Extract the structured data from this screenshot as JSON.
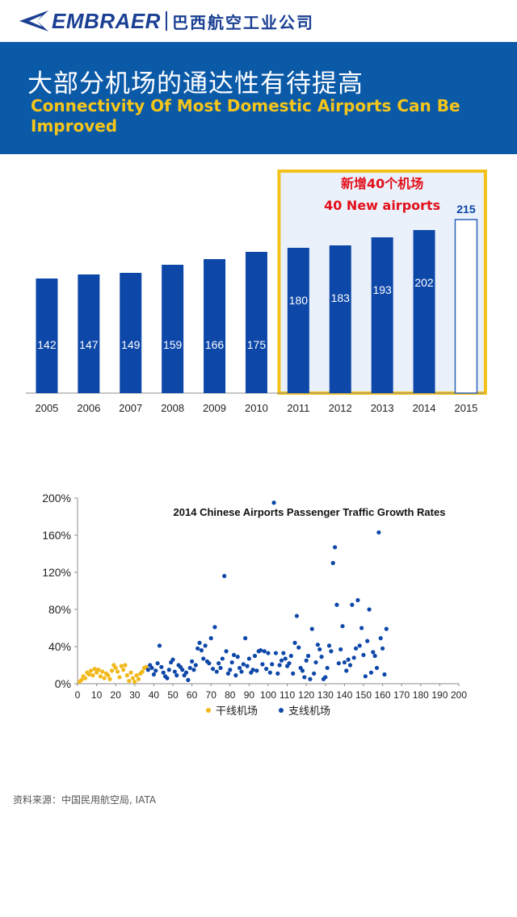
{
  "header": {
    "logo_text": "EMBRAER",
    "logo_cn": "巴西航空工业公司",
    "brand_color": "#1a3f93"
  },
  "banner": {
    "title_cn": "大部分机场的通达性有待提高",
    "title_en": "Connectivity Of Most Domestic Airports Can Be Improved",
    "bg_color": "#0b5aa8",
    "title_en_color": "#f5c51a"
  },
  "chart_data": [
    {
      "type": "bar",
      "categories": [
        "2005",
        "2006",
        "2007",
        "2008",
        "2009",
        "2010",
        "2011",
        "2012",
        "2013",
        "2014",
        "2015"
      ],
      "values": [
        142,
        147,
        149,
        159,
        166,
        175,
        180,
        183,
        193,
        202,
        215
      ],
      "ylim": [
        0,
        300
      ],
      "bar_color": "#0d47a8",
      "projected_category": "2015",
      "highlight": {
        "from": "2011",
        "to": "2015",
        "label_cn": "新增40个机场",
        "label_en": "40 New airports",
        "border_color": "#f2c21b",
        "label_color": "#e3101b"
      }
    },
    {
      "type": "scatter",
      "title": "2014 Chinese Airports Passenger Traffic Growth Rates",
      "xlim": [
        0,
        200
      ],
      "ylim": [
        0,
        200
      ],
      "x_ticks": [
        0,
        10,
        20,
        30,
        40,
        50,
        60,
        70,
        80,
        90,
        100,
        110,
        120,
        130,
        140,
        150,
        160,
        170,
        180,
        190,
        200
      ],
      "y_ticks": [
        "0%",
        "40%",
        "80%",
        "120%",
        "160%",
        "200%"
      ],
      "y_tick_values": [
        0,
        40,
        80,
        120,
        160,
        200
      ],
      "series": [
        {
          "name": "干线机场",
          "color": "#f2b81a",
          "points": [
            [
              1,
              2
            ],
            [
              2,
              4
            ],
            [
              3,
              8
            ],
            [
              4,
              6
            ],
            [
              5,
              12
            ],
            [
              6,
              10
            ],
            [
              7,
              14
            ],
            [
              8,
              9
            ],
            [
              9,
              16
            ],
            [
              10,
              12
            ],
            [
              11,
              15
            ],
            [
              12,
              8
            ],
            [
              13,
              13
            ],
            [
              14,
              6
            ],
            [
              15,
              11
            ],
            [
              16,
              9
            ],
            [
              17,
              5
            ],
            [
              18,
              14
            ],
            [
              19,
              20
            ],
            [
              20,
              17
            ],
            [
              21,
              13
            ],
            [
              22,
              7
            ],
            [
              23,
              19
            ],
            [
              24,
              15
            ],
            [
              25,
              20
            ],
            [
              26,
              9
            ],
            [
              27,
              3
            ],
            [
              28,
              12
            ],
            [
              29,
              6
            ],
            [
              30,
              2
            ],
            [
              31,
              9
            ],
            [
              32,
              5
            ],
            [
              33,
              11
            ],
            [
              34,
              13
            ],
            [
              35,
              17
            ],
            [
              36,
              18
            ]
          ]
        },
        {
          "name": "支线机场",
          "color": "#0d47a8",
          "points": [
            [
              37,
              15
            ],
            [
              38,
              20
            ],
            [
              39,
              17
            ],
            [
              40,
              10
            ],
            [
              41,
              14
            ],
            [
              42,
              22
            ],
            [
              43,
              41
            ],
            [
              44,
              18
            ],
            [
              45,
              12
            ],
            [
              46,
              8
            ],
            [
              47,
              6
            ],
            [
              48,
              15
            ],
            [
              49,
              23
            ],
            [
              50,
              26
            ],
            [
              51,
              13
            ],
            [
              52,
              9
            ],
            [
              53,
              20
            ],
            [
              54,
              18
            ],
            [
              55,
              15
            ],
            [
              56,
              9
            ],
            [
              57,
              12
            ],
            [
              58,
              4
            ],
            [
              59,
              17
            ],
            [
              60,
              24
            ],
            [
              61,
              15
            ],
            [
              62,
              20
            ],
            [
              63,
              38
            ],
            [
              64,
              44
            ],
            [
              65,
              36
            ],
            [
              66,
              27
            ],
            [
              67,
              41
            ],
            [
              68,
              24
            ],
            [
              69,
              22
            ],
            [
              70,
              49
            ],
            [
              71,
              16
            ],
            [
              72,
              61
            ],
            [
              73,
              13
            ],
            [
              74,
              22
            ],
            [
              75,
              17
            ],
            [
              76,
              27
            ],
            [
              77,
              116
            ],
            [
              78,
              35
            ],
            [
              79,
              11
            ],
            [
              80,
              15
            ],
            [
              81,
              23
            ],
            [
              82,
              31
            ],
            [
              83,
              9
            ],
            [
              84,
              29
            ],
            [
              85,
              17
            ],
            [
              86,
              13
            ],
            [
              87,
              21
            ],
            [
              88,
              49
            ],
            [
              89,
              19
            ],
            [
              90,
              27
            ],
            [
              91,
              12
            ],
            [
              92,
              15
            ],
            [
              93,
              30
            ],
            [
              94,
              14
            ],
            [
              95,
              35
            ],
            [
              96,
              36
            ],
            [
              97,
              21
            ],
            [
              98,
              35
            ],
            [
              99,
              16
            ],
            [
              100,
              33
            ],
            [
              101,
              12
            ],
            [
              102,
              21
            ],
            [
              103,
              195
            ],
            [
              104,
              33
            ],
            [
              105,
              11
            ],
            [
              106,
              20
            ],
            [
              107,
              25
            ],
            [
              108,
              33
            ],
            [
              109,
              27
            ],
            [
              110,
              19
            ],
            [
              111,
              22
            ],
            [
              112,
              30
            ],
            [
              113,
              11
            ],
            [
              114,
              44
            ],
            [
              115,
              73
            ],
            [
              116,
              39
            ],
            [
              117,
              17
            ],
            [
              118,
              14
            ],
            [
              119,
              7
            ],
            [
              120,
              25
            ],
            [
              121,
              30
            ],
            [
              122,
              5
            ],
            [
              123,
              59
            ],
            [
              124,
              11
            ],
            [
              125,
              23
            ],
            [
              126,
              42
            ],
            [
              127,
              37
            ],
            [
              128,
              29
            ],
            [
              129,
              5
            ],
            [
              130,
              7
            ],
            [
              131,
              17
            ],
            [
              132,
              41
            ],
            [
              133,
              35
            ],
            [
              134,
              130
            ],
            [
              135,
              147
            ],
            [
              136,
              85
            ],
            [
              137,
              22
            ],
            [
              138,
              37
            ],
            [
              139,
              62
            ],
            [
              140,
              23
            ],
            [
              141,
              14
            ],
            [
              142,
              26
            ],
            [
              143,
              20
            ],
            [
              144,
              85
            ],
            [
              145,
              28
            ],
            [
              146,
              38
            ],
            [
              147,
              90
            ],
            [
              148,
              41
            ],
            [
              149,
              60
            ],
            [
              150,
              31
            ],
            [
              151,
              8
            ],
            [
              152,
              46
            ],
            [
              153,
              80
            ],
            [
              154,
              12
            ],
            [
              155,
              34
            ],
            [
              156,
              30
            ],
            [
              157,
              17
            ],
            [
              158,
              163
            ],
            [
              159,
              49
            ],
            [
              160,
              38
            ],
            [
              161,
              10
            ],
            [
              162,
              59
            ]
          ]
        }
      ],
      "legend_position": "bottom-center"
    }
  ],
  "footer": {
    "source": "资料来源：中国民用航空局, IATA"
  }
}
